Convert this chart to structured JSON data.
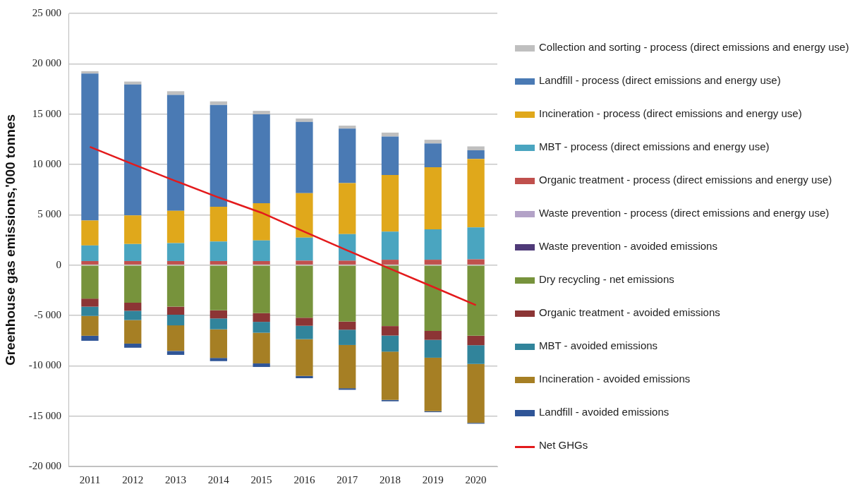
{
  "chart_data": {
    "type": "bar",
    "stacked": true,
    "ylabel": "Greenhouse gas emissions,'000 tonnes",
    "categories": [
      "2011",
      "2012",
      "2013",
      "2014",
      "2015",
      "2016",
      "2017",
      "2018",
      "2019",
      "2020"
    ],
    "ylim": [
      -20000,
      25000
    ],
    "yticks": [
      {
        "value": -20000,
        "label": "-20 000"
      },
      {
        "value": -15000,
        "label": "-15 000"
      },
      {
        "value": -10000,
        "label": "-10 000"
      },
      {
        "value": -5000,
        "label": "-5 000"
      },
      0,
      {
        "value": 5000,
        "label": "5 000"
      },
      {
        "value": 10000,
        "label": "10 000"
      },
      {
        "value": 15000,
        "label": "15 000"
      },
      {
        "value": 20000,
        "label": "20 000"
      },
      {
        "value": 25000,
        "label": "25 000"
      }
    ],
    "grid": "y",
    "legend": "right",
    "series": [
      {
        "name": "Organic treatment - process (direct emissions and energy use)",
        "color": "#c0504d",
        "values": [
          400,
          400,
          400,
          400,
          400,
          440,
          440,
          530,
          530,
          570
        ]
      },
      {
        "name": "MBT - process (direct emissions and energy use)",
        "color": "#4aa5c0",
        "values": [
          1550,
          1690,
          1780,
          1940,
          2050,
          2290,
          2630,
          2800,
          3020,
          3170
        ]
      },
      {
        "name": "Incineration - process (direct emissions and energy use)",
        "color": "#e0a81b",
        "values": [
          2480,
          2840,
          3210,
          3460,
          3700,
          4420,
          5070,
          5610,
          6170,
          6810
        ]
      },
      {
        "name": "Landfill - process (direct emissions and energy use)",
        "color": "#4a7ab4",
        "values": [
          14600,
          13000,
          11510,
          10110,
          8820,
          7070,
          5410,
          3830,
          2360,
          850
        ]
      },
      {
        "name": "Collection and sorting - process (direct emissions and energy use)",
        "color": "#bfbfbf",
        "values": [
          230,
          300,
          370,
          350,
          350,
          340,
          300,
          390,
          370,
          390
        ]
      },
      {
        "name": "Waste prevention - process (direct emissions and energy use)",
        "color": "#b3a2c7",
        "values": [
          0,
          0,
          0,
          0,
          0,
          0,
          0,
          0,
          0,
          0
        ]
      },
      {
        "name": "Waste prevention - avoided emissions",
        "color": "#4f3a78",
        "values": [
          0,
          0,
          0,
          0,
          0,
          0,
          0,
          0,
          0,
          0
        ]
      },
      {
        "name": "Dry recycling - net emissions",
        "color": "#77933c",
        "values": [
          -3330,
          -3740,
          -4130,
          -4500,
          -4770,
          -5230,
          -5620,
          -6060,
          -6540,
          -7020
        ]
      },
      {
        "name": "Organic treatment - avoided emissions",
        "color": "#8c3535",
        "values": [
          -800,
          -800,
          -800,
          -800,
          -870,
          -800,
          -800,
          -940,
          -890,
          -940
        ]
      },
      {
        "name": "MBT - avoided emissions",
        "color": "#31849b",
        "values": [
          -920,
          -920,
          -1060,
          -1080,
          -1080,
          -1330,
          -1520,
          -1600,
          -1770,
          -1860
        ]
      },
      {
        "name": "Incineration - avoided emissions",
        "color": "#a67f24",
        "values": [
          -1970,
          -2340,
          -2540,
          -2840,
          -3050,
          -3650,
          -4290,
          -4800,
          -5320,
          -5850
        ]
      },
      {
        "name": "Landfill - avoided emissions",
        "color": "#2f5597",
        "values": [
          -500,
          -410,
          -390,
          -320,
          -350,
          -230,
          -160,
          -130,
          -90,
          -90
        ]
      },
      {
        "name": "Net GHGs",
        "type": "line",
        "color": "#e31a1c",
        "values": [
          11740,
          10020,
          8350,
          6720,
          5200,
          3320,
          1460,
          -370,
          -2160,
          -3970
        ]
      }
    ]
  }
}
